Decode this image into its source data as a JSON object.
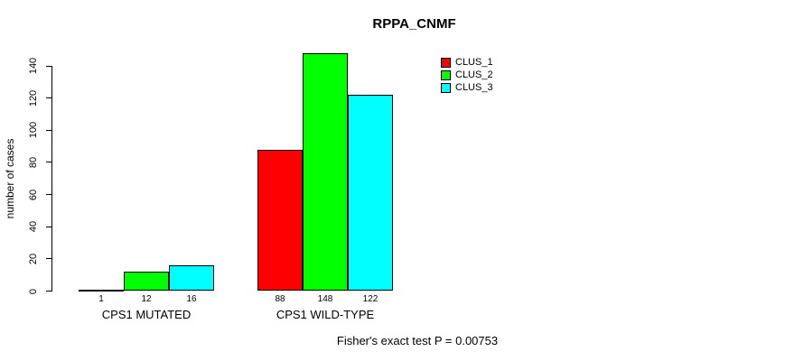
{
  "chart_data": {
    "type": "bar",
    "title": "RPPA_CNMF",
    "xlabel": "",
    "ylabel": "number of cases",
    "categories": [
      "CPS1 MUTATED",
      "CPS1 WILD-TYPE"
    ],
    "series": [
      {
        "name": "CLUS_1",
        "color": "#ff0000",
        "values": [
          1,
          88
        ]
      },
      {
        "name": "CLUS_2",
        "color": "#00ff00",
        "values": [
          12,
          148
        ]
      },
      {
        "name": "CLUS_3",
        "color": "#00ffff",
        "values": [
          16,
          122
        ]
      }
    ],
    "bar_value_labels": [
      [
        "1",
        "12",
        "16"
      ],
      [
        "88",
        "148",
        "122"
      ]
    ],
    "yticks": [
      0,
      20,
      40,
      60,
      80,
      100,
      120,
      140
    ],
    "ylim": [
      0,
      140
    ],
    "grid": false,
    "legend_position": "top-right",
    "annotation": "Fisher's exact test P = 0.00753",
    "background_color": "#ffffff",
    "bar_border_color": "#000000"
  }
}
